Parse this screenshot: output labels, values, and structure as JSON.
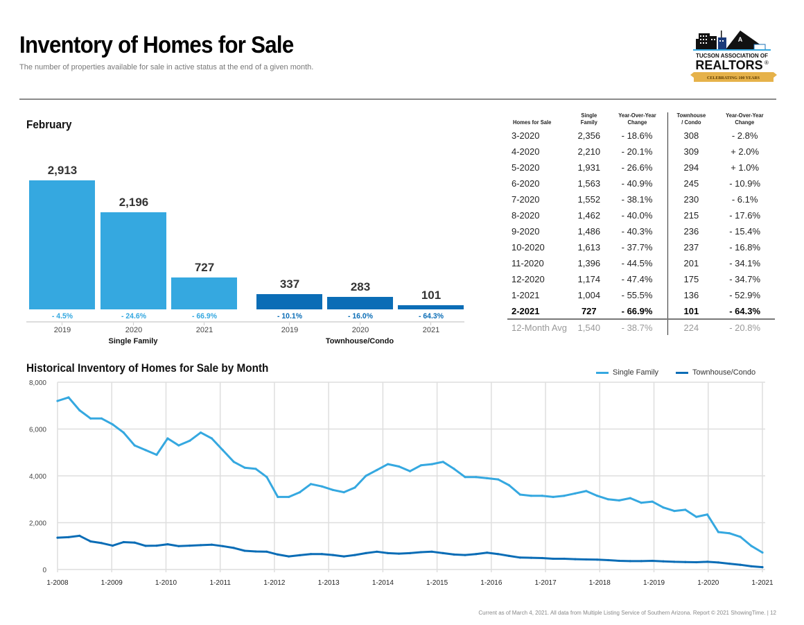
{
  "header": {
    "title": "Inventory of Homes for Sale",
    "subtitle": "The number of properties available for sale in active status at the end of a given month.",
    "logo": {
      "line1": "TUCSON ASSOCIATION OF",
      "line2": "REALTORS",
      "registered": "®",
      "banner": "CELEBRATING 100 YEARS"
    }
  },
  "colors": {
    "single_family": "#35a8e0",
    "townhouse": "#0b6db6",
    "grid": "#dedede",
    "banner": "#e6b24a"
  },
  "bar_section": {
    "title": "February",
    "groups": [
      {
        "label": "Single Family",
        "bars": [
          {
            "year": "2019",
            "value": 2913,
            "label": "2,913",
            "change": "- 4.5%"
          },
          {
            "year": "2020",
            "value": 2196,
            "label": "2,196",
            "change": "- 24.6%"
          },
          {
            "year": "2021",
            "value": 727,
            "label": "727",
            "change": "- 66.9%"
          }
        ]
      },
      {
        "label": "Townhouse/Condo",
        "bars": [
          {
            "year": "2019",
            "value": 337,
            "label": "337",
            "change": "- 10.1%"
          },
          {
            "year": "2020",
            "value": 283,
            "label": "283",
            "change": "- 16.0%"
          },
          {
            "year": "2021",
            "value": 101,
            "label": "101",
            "change": "- 64.3%"
          }
        ]
      }
    ]
  },
  "table": {
    "headers": [
      [
        "Homes for Sale"
      ],
      [
        "Single",
        "Family"
      ],
      [
        "Year-Over-Year",
        "Change"
      ],
      [
        "Townhouse",
        "/ Condo"
      ],
      [
        "Year-Over-Year",
        "Change"
      ]
    ],
    "rows": [
      [
        "3-2020",
        "2,356",
        "- 18.6%",
        "308",
        "- 2.8%"
      ],
      [
        "4-2020",
        "2,210",
        "- 20.1%",
        "309",
        "+ 2.0%"
      ],
      [
        "5-2020",
        "1,931",
        "- 26.6%",
        "294",
        "+ 1.0%"
      ],
      [
        "6-2020",
        "1,563",
        "- 40.9%",
        "245",
        "- 10.9%"
      ],
      [
        "7-2020",
        "1,552",
        "- 38.1%",
        "230",
        "- 6.1%"
      ],
      [
        "8-2020",
        "1,462",
        "- 40.0%",
        "215",
        "- 17.6%"
      ],
      [
        "9-2020",
        "1,486",
        "- 40.3%",
        "236",
        "- 15.4%"
      ],
      [
        "10-2020",
        "1,613",
        "- 37.7%",
        "237",
        "- 16.8%"
      ],
      [
        "11-2020",
        "1,396",
        "- 44.5%",
        "201",
        "- 34.1%"
      ],
      [
        "12-2020",
        "1,174",
        "- 47.4%",
        "175",
        "- 34.7%"
      ],
      [
        "1-2021",
        "1,004",
        "- 55.5%",
        "136",
        "- 52.9%"
      ]
    ],
    "current_row": [
      "2-2021",
      "727",
      "- 66.9%",
      "101",
      "- 64.3%"
    ],
    "avg_row": [
      "12-Month Avg",
      "1,540",
      "- 38.7%",
      "224",
      "- 20.8%"
    ]
  },
  "chart_data": [
    {
      "type": "bar",
      "title": "February",
      "categories": [
        "2019",
        "2020",
        "2021"
      ],
      "series": [
        {
          "name": "Single Family",
          "values": [
            2913,
            2196,
            727
          ],
          "changes": [
            "- 4.5%",
            "- 24.6%",
            "- 66.9%"
          ]
        },
        {
          "name": "Townhouse/Condo",
          "values": [
            337,
            283,
            101
          ],
          "changes": [
            "- 10.1%",
            "- 16.0%",
            "- 64.3%"
          ]
        }
      ]
    },
    {
      "type": "line",
      "title": "Historical Inventory of Homes for Sale by Month",
      "xlabel": "",
      "ylabel": "",
      "ylim": [
        0,
        8000
      ],
      "yticks": [
        "0",
        "2,000",
        "4,000",
        "6,000",
        "8,000"
      ],
      "xticks": [
        "1-2008",
        "1-2009",
        "1-2010",
        "1-2011",
        "1-2012",
        "1-2013",
        "1-2014",
        "1-2015",
        "1-2016",
        "1-2017",
        "1-2018",
        "1-2019",
        "1-2020",
        "1-2021"
      ],
      "x_start": "1-2008",
      "x_step": "quarterly",
      "legend": "top-right",
      "grid": true,
      "series": [
        {
          "name": "Single Family",
          "values": [
            7200,
            7350,
            6800,
            6450,
            6450,
            6200,
            5850,
            5300,
            5100,
            4900,
            5600,
            5300,
            5500,
            5850,
            5600,
            5100,
            4600,
            4350,
            4300,
            3950,
            3100,
            3100,
            3300,
            3650,
            3550,
            3400,
            3300,
            3500,
            4000,
            4250,
            4500,
            4400,
            4200,
            4450,
            4500,
            4600,
            4300,
            3950,
            3950,
            3900,
            3850,
            3600,
            3200,
            3150,
            3150,
            3100,
            3150,
            3250,
            3350,
            3150,
            3000,
            2950,
            3050,
            2850,
            2900,
            2650,
            2500,
            2550,
            2250,
            2350,
            1600,
            1550,
            1396,
            1004,
            727
          ]
        },
        {
          "name": "Townhouse/Condo",
          "values": [
            1360,
            1380,
            1440,
            1200,
            1130,
            1020,
            1170,
            1150,
            1010,
            1020,
            1080,
            1000,
            1020,
            1040,
            1060,
            1000,
            920,
            800,
            770,
            760,
            640,
            560,
            610,
            660,
            660,
            620,
            560,
            620,
            700,
            760,
            700,
            680,
            700,
            740,
            760,
            700,
            640,
            620,
            660,
            720,
            660,
            580,
            510,
            500,
            490,
            460,
            460,
            440,
            430,
            420,
            400,
            370,
            360,
            360,
            370,
            350,
            330,
            320,
            310,
            330,
            300,
            250,
            201,
            136,
            101
          ]
        }
      ]
    }
  ],
  "legend": {
    "single_family": "Single Family",
    "townhouse": "Townhouse/Condo"
  },
  "footer": "Current as of March 4, 2021. All data from Multiple Listing Service of Southern Arizona. Report © 2021 ShowingTime.  |  12"
}
